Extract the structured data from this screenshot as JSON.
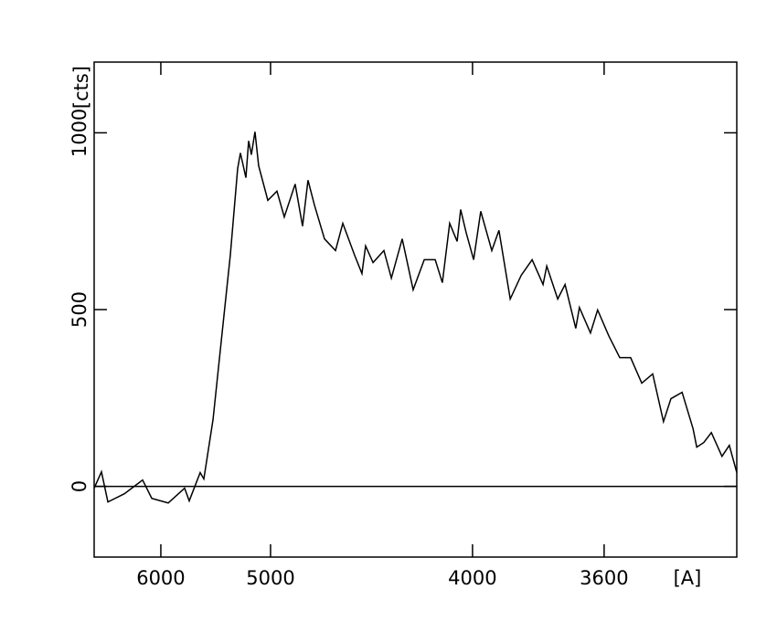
{
  "chart_data": {
    "type": "line",
    "xlabel": "[A]",
    "ylabel": "[cts]",
    "xscale": "inverse-square",
    "xlim": [
      7010,
      3298
    ],
    "xticks": [
      6000,
      5000,
      4000,
      3600
    ],
    "ylim": [
      -200,
      1200
    ],
    "yticks": [
      0,
      500,
      1000
    ],
    "color": "#000000",
    "x": [
      7010,
      6874,
      6760,
      6494,
      6232,
      6112,
      5913,
      5733,
      5685,
      5576,
      5541,
      5456,
      5384,
      5306,
      5246,
      5224,
      5181,
      5160,
      5139,
      5112,
      5085,
      5019,
      4956,
      4907,
      4837,
      4791,
      4758,
      4720,
      4662,
      4601,
      4562,
      4501,
      4464,
      4446,
      4410,
      4359,
      4325,
      4277,
      4230,
      4184,
      4140,
      4112,
      4084,
      4056,
      4043,
      4023,
      3996,
      3971,
      3933,
      3909,
      3872,
      3837,
      3803,
      3770,
      3759,
      3727,
      3706,
      3676,
      3666,
      3636,
      3617,
      3588,
      3560,
      3533,
      3506,
      3480,
      3455,
      3438,
      3413,
      3389,
      3381,
      3366,
      3350,
      3328,
      3313,
      3298
    ],
    "values": [
      -5,
      41,
      -44,
      -21,
      18,
      -34,
      -47,
      -5,
      -41,
      39,
      21,
      189,
      408,
      654,
      899,
      943,
      873,
      977,
      938,
      1003,
      907,
      809,
      835,
      762,
      855,
      736,
      866,
      796,
      700,
      667,
      744,
      654,
      602,
      680,
      633,
      667,
      589,
      700,
      556,
      641,
      641,
      576,
      744,
      693,
      783,
      718,
      641,
      778,
      667,
      724,
      530,
      597,
      641,
      571,
      623,
      530,
      571,
      447,
      506,
      434,
      499,
      426,
      364,
      364,
      292,
      318,
      183,
      248,
      266,
      163,
      111,
      124,
      152,
      85,
      116,
      39
    ]
  }
}
